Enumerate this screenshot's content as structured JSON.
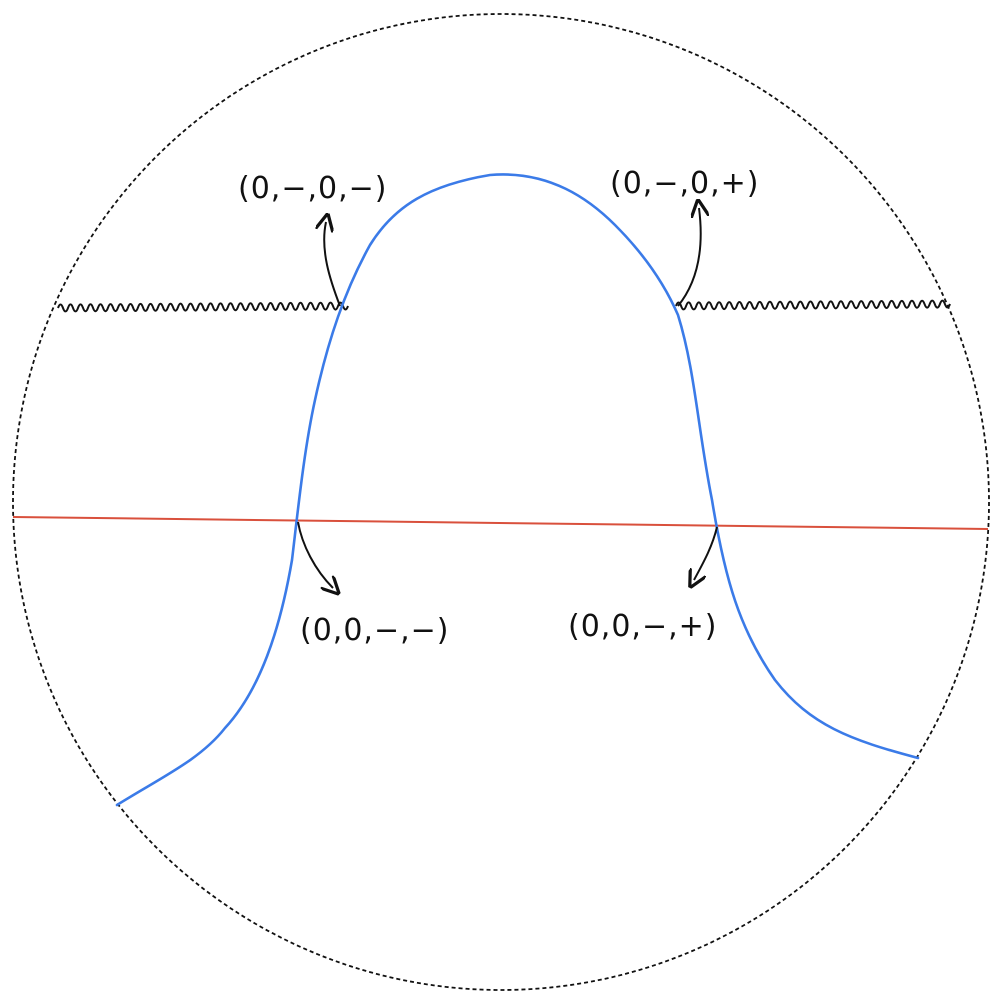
{
  "colors": {
    "boundary": "#111111",
    "curve": "#3b7be8",
    "cut_line": "#d9503c",
    "wavy_edge": "#111111",
    "arrow": "#111111",
    "background": "#ffffff"
  },
  "labels": {
    "top_left": "(0,−,0,−)",
    "top_right": "(0,−,0,+)",
    "bottom_left": "(0,0,−,−)",
    "bottom_right": "(0,0,−,+)"
  }
}
